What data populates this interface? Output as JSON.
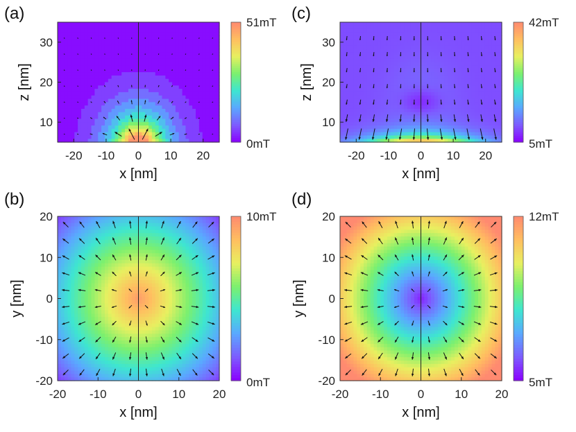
{
  "chart_data": [
    {
      "panel_label": "(a)",
      "type": "heatmap",
      "field": "dipole_side",
      "xlabel": "x [nm]",
      "ylabel": "z [nm]",
      "xlim": [
        -25,
        25
      ],
      "ylim": [
        5,
        35
      ],
      "xticks": [
        -20,
        -10,
        0,
        10,
        20
      ],
      "xtick_labels": [
        "-20",
        "-10",
        "0",
        "10",
        "20"
      ],
      "yticks": [
        10,
        20,
        30
      ],
      "ytick_labels": [
        "10",
        "20",
        "30"
      ],
      "colorbar": {
        "min_label": "0mT",
        "max_label": "51mT",
        "min": 0,
        "max": 51
      }
    },
    {
      "panel_label": "(c)",
      "type": "heatmap",
      "field": "blob_side",
      "xlabel": "x [nm]",
      "ylabel": "z [nm]",
      "xlim": [
        -25,
        25
      ],
      "ylim": [
        5,
        35
      ],
      "xticks": [
        -20,
        -10,
        0,
        10,
        20
      ],
      "xtick_labels": [
        "-20",
        "-10",
        "0",
        "10",
        "20"
      ],
      "yticks": [
        10,
        20,
        30
      ],
      "ytick_labels": [
        "10",
        "20",
        "30"
      ],
      "colorbar": {
        "min_label": "5mT",
        "max_label": "42mT",
        "min": 5,
        "max": 42
      }
    },
    {
      "panel_label": "(b)",
      "type": "heatmap",
      "field": "top_peak",
      "xlabel": "x [nm]",
      "ylabel": "y [nm]",
      "xlim": [
        -20,
        20
      ],
      "ylim": [
        -20,
        20
      ],
      "xticks": [
        -20,
        -10,
        0,
        10,
        20
      ],
      "xtick_labels": [
        "-20",
        "-10",
        "0",
        "10",
        "20"
      ],
      "yticks": [
        -20,
        -10,
        0,
        10,
        20
      ],
      "ytick_labels": [
        "-20",
        "-10",
        "0",
        "10",
        "20"
      ],
      "colorbar": {
        "min_label": "0mT",
        "max_label": "10mT",
        "min": 0,
        "max": 10
      }
    },
    {
      "panel_label": "(d)",
      "type": "heatmap",
      "field": "top_hole",
      "xlabel": "x [nm]",
      "ylabel": "y [nm]",
      "xlim": [
        -20,
        20
      ],
      "ylim": [
        -20,
        20
      ],
      "xticks": [
        -20,
        -10,
        0,
        10,
        20
      ],
      "xtick_labels": [
        "-20",
        "-10",
        "0",
        "10",
        "20"
      ],
      "yticks": [
        -20,
        -10,
        0,
        10,
        20
      ],
      "ytick_labels": [
        "-20",
        "-10",
        "0",
        "10",
        "20"
      ],
      "colorbar": {
        "min_label": "5mT",
        "max_label": "12mT",
        "min": 5,
        "max": 12
      }
    }
  ],
  "colormap": [
    "#8a00ff",
    "#7d5cff",
    "#5aa8ff",
    "#3ee6d0",
    "#7cf06e",
    "#e8f060",
    "#ffbe60",
    "#ff8a70"
  ]
}
